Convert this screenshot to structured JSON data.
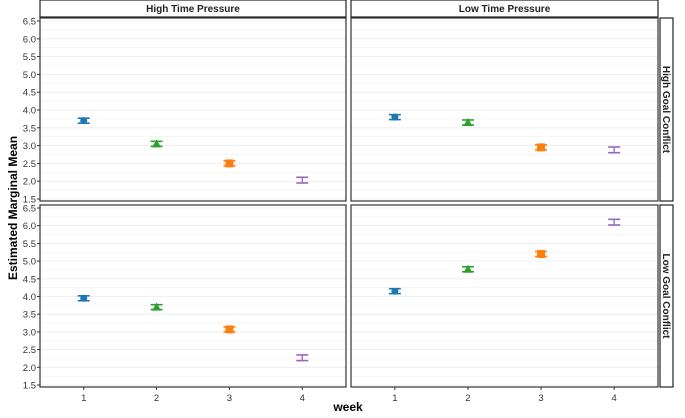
{
  "chart_data": {
    "type": "scatter",
    "title": "",
    "xlabel": "week",
    "ylabel": "Estimated Marginal Mean",
    "xticks": [
      "1",
      "2",
      "3",
      "4"
    ],
    "yticks": [
      "1.5",
      "2.0",
      "2.5",
      "3.0",
      "3.5",
      "4.0",
      "4.5",
      "5.0",
      "5.5",
      "6.0",
      "6.5"
    ],
    "ylim": [
      1.5,
      6.5
    ],
    "grid": true,
    "column_facets": [
      "High Time Pressure",
      "Low Time Pressure"
    ],
    "row_facets": [
      "High Goal Conflict",
      "Low Goal Conflict"
    ],
    "week_colors": [
      "#1f77b4",
      "#2ca02c",
      "#ff7f0e",
      "#9467bd"
    ],
    "week_shapes": [
      "circle",
      "triangle",
      "square",
      "none"
    ],
    "panels": [
      {
        "col": "High Time Pressure",
        "row": "High Goal Conflict",
        "x": [
          1,
          2,
          3,
          4
        ],
        "y": [
          3.7,
          3.05,
          2.5,
          2.03
        ],
        "ci_half": [
          0.07,
          0.07,
          0.07,
          0.08
        ]
      },
      {
        "col": "Low Time Pressure",
        "row": "High Goal Conflict",
        "x": [
          1,
          2,
          3,
          4
        ],
        "y": [
          3.8,
          3.65,
          2.95,
          2.88
        ],
        "ci_half": [
          0.07,
          0.07,
          0.07,
          0.08
        ]
      },
      {
        "col": "High Time Pressure",
        "row": "Low Goal Conflict",
        "x": [
          1,
          2,
          3,
          4
        ],
        "y": [
          3.95,
          3.7,
          3.07,
          2.27
        ],
        "ci_half": [
          0.07,
          0.07,
          0.07,
          0.08
        ]
      },
      {
        "col": "Low Time Pressure",
        "row": "Low Goal Conflict",
        "x": [
          1,
          2,
          3,
          4
        ],
        "y": [
          4.15,
          4.77,
          5.2,
          6.1
        ],
        "ci_half": [
          0.07,
          0.07,
          0.07,
          0.08
        ]
      }
    ]
  }
}
